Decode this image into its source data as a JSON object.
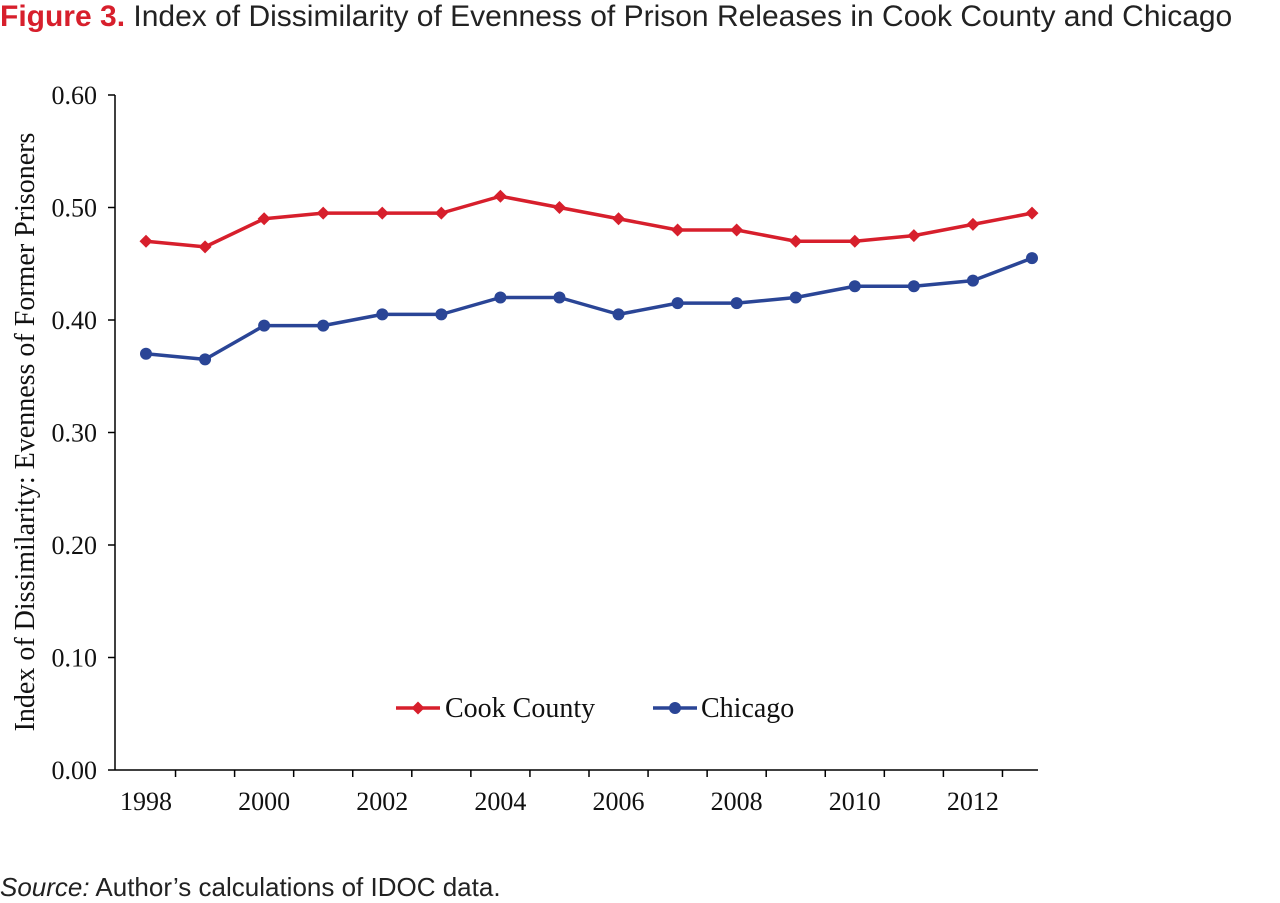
{
  "figure": {
    "label": "Figure 3.",
    "title": "Index of Dissimilarity of Evenness of Prison Releases in Cook County and Chicago",
    "source_label": "Source:",
    "source_text": "Author’s calculations of IDOC data."
  },
  "chart_data": {
    "type": "line",
    "title": "Index of Dissimilarity of Evenness of Prison Releases in Cook County and Chicago",
    "xlabel": "",
    "ylabel": "Index of Dissimilarity: Evenness of Former Prisoners",
    "x": [
      1998,
      1999,
      2000,
      2001,
      2002,
      2003,
      2004,
      2005,
      2006,
      2007,
      2008,
      2009,
      2010,
      2011,
      2012,
      2013
    ],
    "x_tick_labels": [
      "1998",
      "2000",
      "2002",
      "2004",
      "2006",
      "2008",
      "2010",
      "2012"
    ],
    "ylim": [
      0,
      0.6
    ],
    "y_ticks": [
      0,
      0.1,
      0.2,
      0.3,
      0.4,
      0.5,
      0.6
    ],
    "y_tick_labels": [
      "0.00",
      "0.10",
      "0.20",
      "0.30",
      "0.40",
      "0.50",
      "0.60"
    ],
    "grid": false,
    "legend_position": "bottom-center",
    "series": [
      {
        "name": "Cook County",
        "color": "#d71f2c",
        "marker": "diamond",
        "values": [
          0.47,
          0.465,
          0.49,
          0.495,
          0.495,
          0.495,
          0.51,
          0.5,
          0.49,
          0.48,
          0.48,
          0.47,
          0.47,
          0.475,
          0.485,
          0.495
        ]
      },
      {
        "name": "Chicago",
        "color": "#2a4596",
        "marker": "circle",
        "values": [
          0.37,
          0.365,
          0.395,
          0.395,
          0.405,
          0.405,
          0.42,
          0.42,
          0.405,
          0.415,
          0.415,
          0.42,
          0.43,
          0.43,
          0.435,
          0.455
        ]
      }
    ]
  }
}
